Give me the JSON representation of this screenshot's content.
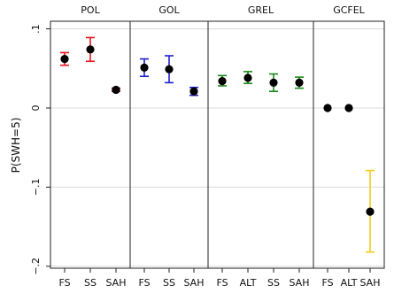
{
  "chart_data": {
    "type": "scatter",
    "title": "",
    "ylabel": "P(SWH=5)",
    "ylim": [
      -0.2,
      0.1
    ],
    "y_ticks": [
      {
        "value": 0.1,
        "label": ".1"
      },
      {
        "value": 0,
        "label": "0"
      },
      {
        "value": -0.1,
        "label": "-.1"
      },
      {
        "value": -0.2,
        "label": "-.2"
      }
    ],
    "grid": true,
    "panels": [
      {
        "name": "POL",
        "color": "#e8141c",
        "categories": [
          "FS",
          "SS",
          "SAH"
        ],
        "values": [
          0.062,
          0.074,
          0.023
        ],
        "ci_low": [
          0.054,
          0.059,
          0.021
        ],
        "ci_high": [
          0.07,
          0.089,
          0.025
        ]
      },
      {
        "name": "GOL",
        "color": "#1f1fd1",
        "categories": [
          "FS",
          "SS",
          "SAH"
        ],
        "values": [
          0.051,
          0.049,
          0.021
        ],
        "ci_low": [
          0.04,
          0.032,
          0.016
        ],
        "ci_high": [
          0.062,
          0.066,
          0.026
        ]
      },
      {
        "name": "GREL",
        "color": "#1a8a1a",
        "categories": [
          "FS",
          "ALT",
          "SS",
          "SAH"
        ],
        "values": [
          0.034,
          0.038,
          0.032,
          0.032
        ],
        "ci_low": [
          0.028,
          0.031,
          0.021,
          0.025
        ],
        "ci_high": [
          0.041,
          0.046,
          0.043,
          0.039
        ]
      },
      {
        "name": "GCFEL",
        "color": "#f2cc14",
        "categories": [
          "FS",
          "ALT",
          "SAH"
        ],
        "values": [
          0.0,
          0.0,
          -0.131
        ],
        "ci_low": [
          null,
          null,
          -0.182
        ],
        "ci_high": [
          null,
          null,
          -0.079
        ]
      }
    ]
  }
}
